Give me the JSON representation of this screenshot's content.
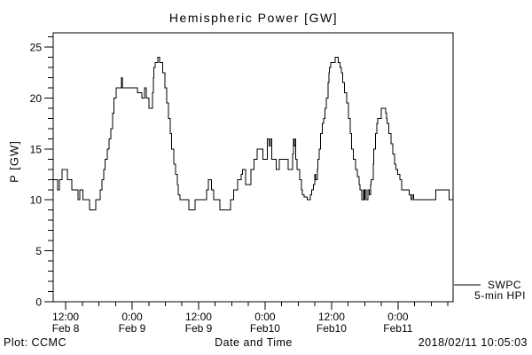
{
  "window": {
    "background_color": "#ffffff",
    "foreground_color": "#000000"
  },
  "chart_data": {
    "type": "line",
    "line_style": "step",
    "title": "Hemispheric Power [GW]",
    "xlabel": "Date and Time",
    "ylabel": "P [GW]",
    "line_color": "#000000",
    "frame_color": "#000000",
    "grid": "off",
    "legend_position": "outside-bottom-right",
    "xlim_hours": [
      0,
      72.2
    ],
    "ylim": [
      0,
      26.4
    ],
    "x_axis": {
      "major_ticks": [
        {
          "t": 2.25,
          "time": "12:00",
          "date": "Feb 8"
        },
        {
          "t": 14.25,
          "time": "0:00",
          "date": "Feb 9"
        },
        {
          "t": 26.25,
          "time": "12:00",
          "date": "Feb 9"
        },
        {
          "t": 38.25,
          "time": "0:00",
          "date": "Feb10"
        },
        {
          "t": 50.25,
          "time": "12:00",
          "date": "Feb10"
        },
        {
          "t": 62.25,
          "time": "0:00",
          "date": "Feb11"
        }
      ],
      "minor_tick_interval_hours": 3,
      "minor_tick_start_hours": 2.25
    },
    "y_axis": {
      "major_ticks": [
        0,
        5,
        10,
        15,
        20,
        25
      ],
      "minor_tick_interval": 1
    },
    "series": [
      {
        "name": "SWPC 5-min HPI",
        "units": "GW",
        "step_points_t_gw": [
          [
            0,
            12
          ],
          [
            0.8,
            11
          ],
          [
            1.1,
            12
          ],
          [
            1.6,
            13
          ],
          [
            2.6,
            12
          ],
          [
            3.4,
            11
          ],
          [
            4.5,
            10
          ],
          [
            4.8,
            11
          ],
          [
            5.4,
            10
          ],
          [
            6.6,
            9
          ],
          [
            7.7,
            10
          ],
          [
            8.5,
            11
          ],
          [
            8.8,
            12
          ],
          [
            9.1,
            13
          ],
          [
            9.4,
            14
          ],
          [
            9.8,
            15
          ],
          [
            10.1,
            16
          ],
          [
            10.4,
            17
          ],
          [
            10.7,
            18.5
          ],
          [
            11.0,
            20
          ],
          [
            11.4,
            21
          ],
          [
            12.3,
            22
          ],
          [
            12.5,
            21
          ],
          [
            15.2,
            20.5
          ],
          [
            16.0,
            20
          ],
          [
            16.5,
            21
          ],
          [
            16.8,
            20
          ],
          [
            17.3,
            19
          ],
          [
            17.9,
            20.5
          ],
          [
            18.1,
            22
          ],
          [
            18.2,
            23
          ],
          [
            18.4,
            23.5
          ],
          [
            18.9,
            24
          ],
          [
            19.2,
            23.5
          ],
          [
            19.8,
            22.5
          ],
          [
            20.2,
            21
          ],
          [
            20.5,
            19.5
          ],
          [
            20.8,
            18
          ],
          [
            21.1,
            16.5
          ],
          [
            21.4,
            15
          ],
          [
            21.8,
            13.5
          ],
          [
            22.1,
            12.5
          ],
          [
            22.4,
            11.5
          ],
          [
            22.6,
            10.5
          ],
          [
            22.9,
            10
          ],
          [
            24.5,
            9
          ],
          [
            25.6,
            10
          ],
          [
            27.7,
            11
          ],
          [
            28.0,
            12
          ],
          [
            28.6,
            11
          ],
          [
            29.0,
            10
          ],
          [
            30.1,
            9
          ],
          [
            32.0,
            10
          ],
          [
            32.6,
            11
          ],
          [
            33.3,
            12
          ],
          [
            33.9,
            12.5
          ],
          [
            34.2,
            13
          ],
          [
            34.7,
            11.5
          ],
          [
            35.7,
            13
          ],
          [
            36.3,
            14
          ],
          [
            36.8,
            15
          ],
          [
            37.9,
            14
          ],
          [
            38.7,
            16
          ],
          [
            39.0,
            15.3
          ],
          [
            39.2,
            16
          ],
          [
            39.5,
            14
          ],
          [
            40.3,
            13
          ],
          [
            40.8,
            14
          ],
          [
            42.4,
            13
          ],
          [
            43.2,
            14.5
          ],
          [
            43.4,
            16
          ],
          [
            43.5,
            15.3
          ],
          [
            43.7,
            16
          ],
          [
            43.8,
            14
          ],
          [
            44.0,
            13
          ],
          [
            44.5,
            12
          ],
          [
            44.8,
            11
          ],
          [
            45.0,
            10.5
          ],
          [
            45.3,
            10.3
          ],
          [
            45.9,
            10
          ],
          [
            46.4,
            10.5
          ],
          [
            46.7,
            11
          ],
          [
            47.0,
            11.5
          ],
          [
            47.2,
            12.5
          ],
          [
            47.4,
            12
          ],
          [
            47.7,
            13
          ],
          [
            47.8,
            14
          ],
          [
            48.0,
            15
          ],
          [
            48.3,
            16.5
          ],
          [
            48.6,
            17.5
          ],
          [
            48.8,
            18
          ],
          [
            49.1,
            19
          ],
          [
            49.3,
            20
          ],
          [
            49.6,
            21.5
          ],
          [
            49.8,
            22.5
          ],
          [
            49.9,
            23
          ],
          [
            50.1,
            23.5
          ],
          [
            50.9,
            24
          ],
          [
            51.5,
            23.5
          ],
          [
            51.8,
            23
          ],
          [
            52.0,
            22.5
          ],
          [
            52.3,
            21.5
          ],
          [
            52.6,
            20.5
          ],
          [
            53.0,
            19.5
          ],
          [
            53.3,
            18
          ],
          [
            53.6,
            16.5
          ],
          [
            53.9,
            15
          ],
          [
            54.2,
            14
          ],
          [
            54.6,
            13
          ],
          [
            54.9,
            12.3
          ],
          [
            55.2,
            11.5
          ],
          [
            55.4,
            11
          ],
          [
            55.7,
            10
          ],
          [
            56.0,
            11
          ],
          [
            56.2,
            10
          ],
          [
            56.3,
            11
          ],
          [
            56.5,
            10
          ],
          [
            56.8,
            11
          ],
          [
            57.1,
            10.5
          ],
          [
            57.3,
            11.5
          ],
          [
            57.4,
            12
          ],
          [
            57.8,
            13.5
          ],
          [
            57.9,
            15
          ],
          [
            58.2,
            16.5
          ],
          [
            58.4,
            17.5
          ],
          [
            58.6,
            18
          ],
          [
            59.2,
            19
          ],
          [
            60.0,
            18.5
          ],
          [
            60.2,
            18
          ],
          [
            60.3,
            17.5
          ],
          [
            60.6,
            16.5
          ],
          [
            61.0,
            15.5
          ],
          [
            61.3,
            14.5
          ],
          [
            61.6,
            13.5
          ],
          [
            61.9,
            13
          ],
          [
            62.2,
            12.5
          ],
          [
            62.6,
            12
          ],
          [
            62.9,
            11
          ],
          [
            64.3,
            10.5
          ],
          [
            64.6,
            10
          ],
          [
            64.8,
            10.5
          ],
          [
            65.1,
            10
          ],
          [
            69.1,
            11
          ],
          [
            71.5,
            10
          ],
          [
            72.16,
            10
          ]
        ]
      }
    ]
  },
  "legend": {
    "line1": "SWPC",
    "line2": "5-min HPI"
  },
  "footer": {
    "left": "Plot: CCMC",
    "timestamp": "2018/02/11 10:05:03"
  }
}
